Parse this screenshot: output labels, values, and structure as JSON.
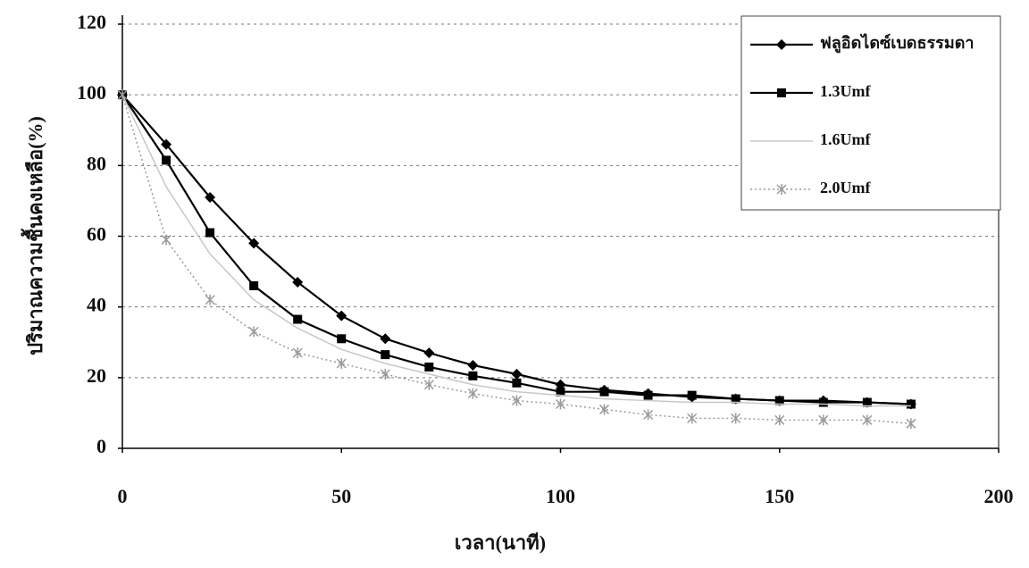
{
  "chart_data": {
    "type": "line",
    "x_label": "เวลา(นาที)",
    "y_label": "ปริมาณความชื้นคงเหลือ(%)",
    "x": [
      0,
      10,
      20,
      30,
      40,
      50,
      60,
      70,
      80,
      90,
      100,
      110,
      120,
      130,
      140,
      150,
      160,
      170,
      180
    ],
    "series": [
      {
        "name": "ฟลูอิดไดซ์เบดธรรมดา",
        "color": "#000000",
        "marker": "diamond",
        "values": [
          100,
          86,
          71,
          58,
          47,
          37.5,
          31,
          27,
          23.5,
          21,
          18,
          16.5,
          15.5,
          14.5,
          14,
          13.5,
          13.5,
          13,
          12.5
        ]
      },
      {
        "name": "1.3Umf",
        "color": "#000000",
        "marker": "square",
        "values": [
          100,
          81.5,
          61,
          46,
          36.5,
          31,
          26.5,
          23,
          20.5,
          18.5,
          16,
          16,
          15,
          15,
          14,
          13.5,
          13,
          13,
          12.5
        ]
      },
      {
        "name": "1.6Umf",
        "color": "#c8c8c8",
        "marker": "none",
        "values": [
          100,
          74,
          55,
          42,
          34,
          28,
          24,
          21,
          18,
          16,
          15,
          14,
          13.5,
          13,
          13,
          12.5,
          12.5,
          12,
          12
        ]
      },
      {
        "name": "2.0Umf",
        "color": "#9a9a9a",
        "marker": "asterisk",
        "values": [
          100,
          59,
          42,
          33,
          27,
          24,
          21,
          18,
          15.5,
          13.5,
          12.5,
          11,
          9.5,
          8.5,
          8.5,
          8,
          8,
          8,
          7
        ]
      }
    ],
    "xlim": [
      0,
      200
    ],
    "xticks": [
      0,
      50,
      100,
      150,
      200
    ],
    "ylim": [
      0,
      120
    ],
    "yticks": [
      0,
      20,
      40,
      60,
      80,
      100,
      120
    ],
    "grid": true,
    "legend_position": "top-right"
  }
}
